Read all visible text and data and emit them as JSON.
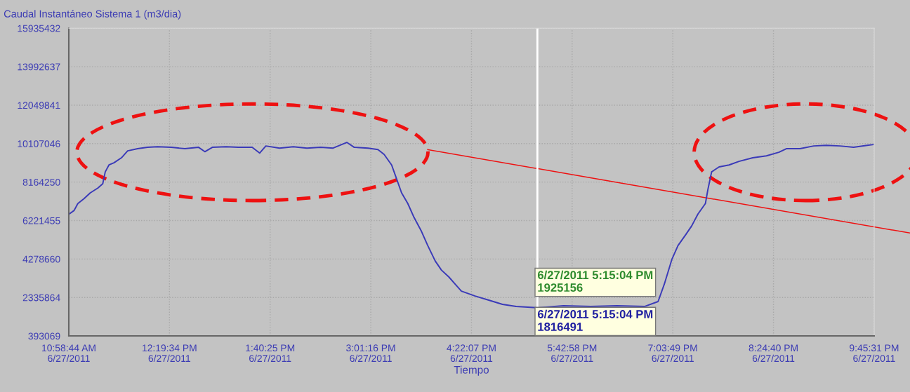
{
  "chart_data": {
    "type": "line",
    "title": "Caudal Instantáneo Sistema 1 (m3/dia)",
    "xlabel": "Tiempo",
    "x": [
      "2011-06-27T10:59",
      "2011-06-27T11:03",
      "2011-06-27T11:06",
      "2011-06-27T11:11",
      "2011-06-27T11:16",
      "2011-06-27T11:22",
      "2011-06-27T11:26",
      "2011-06-27T11:28",
      "2011-06-27T11:31",
      "2011-06-27T11:35",
      "2011-06-27T11:41",
      "2011-06-27T11:46",
      "2011-06-27T11:54",
      "2011-06-27T12:02",
      "2011-06-27T12:10",
      "2011-06-27T12:21",
      "2011-06-27T12:32",
      "2011-06-27T12:43",
      "2011-06-27T12:48",
      "2011-06-27T12:54",
      "2011-06-27T13:05",
      "2011-06-27T13:15",
      "2011-06-27T13:26",
      "2011-06-27T13:32",
      "2011-06-27T13:37",
      "2011-06-27T13:48",
      "2011-06-27T13:59",
      "2011-06-27T14:10",
      "2011-06-27T14:21",
      "2011-06-27T14:31",
      "2011-06-27T14:42",
      "2011-06-27T14:48",
      "2011-06-27T14:59",
      "2011-06-27T15:07",
      "2011-06-27T15:12",
      "2011-06-27T15:18",
      "2011-06-27T15:21",
      "2011-06-27T15:26",
      "2011-06-27T15:31",
      "2011-06-27T15:36",
      "2011-06-27T15:42",
      "2011-06-27T15:47",
      "2011-06-27T15:53",
      "2011-06-27T15:58",
      "2011-06-27T16:04",
      "2011-06-27T16:09",
      "2011-06-27T16:14",
      "2011-06-27T16:25",
      "2011-06-27T16:36",
      "2011-06-27T16:47",
      "2011-06-27T16:58",
      "2011-06-27T17:15",
      "2011-06-27T17:36",
      "2011-06-27T17:58",
      "2011-06-27T18:19",
      "2011-06-27T18:41",
      "2011-06-27T18:52",
      "2011-06-27T18:57",
      "2011-06-27T19:03",
      "2011-06-27T19:08",
      "2011-06-27T19:14",
      "2011-06-27T19:19",
      "2011-06-27T19:24",
      "2011-06-27T19:30",
      "2011-06-27T19:32",
      "2011-06-27T19:35",
      "2011-06-27T19:41",
      "2011-06-27T19:49",
      "2011-06-27T19:57",
      "2011-06-27T20:08",
      "2011-06-27T20:19",
      "2011-06-27T20:29",
      "2011-06-27T20:35",
      "2011-06-27T20:46",
      "2011-06-27T20:57",
      "2011-06-27T21:07",
      "2011-06-27T21:18",
      "2011-06-27T21:29",
      "2011-06-27T21:40",
      "2011-06-27T21:45"
    ],
    "series": [
      {
        "color": "#3a3ab8",
        "values": [
          6550000,
          6730000,
          7080000,
          7330000,
          7620000,
          7860000,
          8080000,
          8680000,
          9030000,
          9140000,
          9390000,
          9740000,
          9850000,
          9920000,
          9950000,
          9920000,
          9850000,
          9920000,
          9700000,
          9920000,
          9950000,
          9920000,
          9920000,
          9630000,
          9990000,
          9880000,
          9950000,
          9880000,
          9920000,
          9880000,
          10170000,
          9920000,
          9880000,
          9810000,
          9560000,
          9030000,
          8500000,
          7620000,
          7080000,
          6380000,
          5670000,
          4960000,
          4180000,
          3720000,
          3370000,
          3010000,
          2660000,
          2410000,
          2200000,
          1990000,
          1880000,
          1816491,
          1920000,
          1880000,
          1920000,
          1880000,
          2130000,
          3010000,
          4250000,
          4960000,
          5490000,
          5950000,
          6550000,
          7080000,
          7790000,
          8680000,
          8930000,
          9030000,
          9210000,
          9390000,
          9490000,
          9670000,
          9850000,
          9850000,
          9990000,
          10020000,
          9990000,
          9920000,
          10020000,
          10060000
        ]
      }
    ],
    "xlim": [
      "2011-06-27T10:58:44",
      "2011-06-27T21:45:31"
    ],
    "xticks": [
      {
        "value": "2011-06-27T10:58:44",
        "label": "10:58:44 AM\n6/27/2011"
      },
      {
        "value": "2011-06-27T12:19:34",
        "label": "12:19:34 PM\n6/27/2011"
      },
      {
        "value": "2011-06-27T13:40:25",
        "label": "1:40:25 PM\n6/27/2011"
      },
      {
        "value": "2011-06-27T15:01:16",
        "label": "3:01:16 PM\n6/27/2011"
      },
      {
        "value": "2011-06-27T16:22:07",
        "label": "4:22:07 PM\n6/27/2011"
      },
      {
        "value": "2011-06-27T17:42:58",
        "label": "5:42:58 PM\n6/27/2011"
      },
      {
        "value": "2011-06-27T19:03:49",
        "label": "7:03:49 PM\n6/27/2011"
      },
      {
        "value": "2011-06-27T20:24:40",
        "label": "8:24:40 PM\n6/27/2011"
      },
      {
        "value": "2011-06-27T21:45:31",
        "label": "9:45:31 PM\n6/27/2011"
      }
    ],
    "ylim": [
      393069,
      15935432
    ],
    "yticks": [
      393069,
      2335864,
      4278660,
      6221455,
      8164250,
      10107046,
      12049841,
      13992637,
      15935432
    ],
    "ref_lines": [
      {
        "axis": "x",
        "value": "2011-06-27T17:15:04",
        "color": "#ffffff"
      }
    ],
    "annotations": [
      {
        "text": "6/27/2011 5:15:04 PM\n1925156",
        "x": "2011-06-27T17:15:04",
        "y": 1925156
      },
      {
        "text": "6/27/2011 5:15:04 PM\n1816491",
        "x": "2011-06-27T17:15:04",
        "y": 1816491
      }
    ],
    "grid": true,
    "line_style": "solid",
    "marker": "none"
  }
}
